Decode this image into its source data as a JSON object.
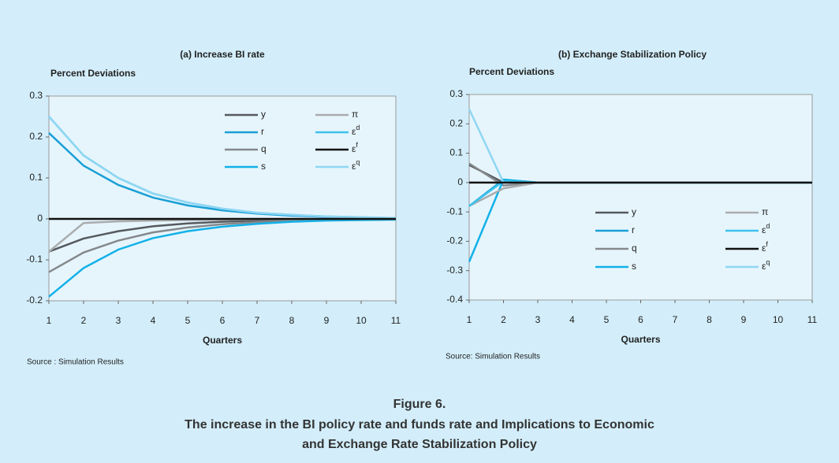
{
  "chart_data": [
    {
      "type": "line",
      "title": "(a) Increase BI rate",
      "y_label": "Percent Deviations",
      "x_label": "Quarters",
      "source": "Source : Simulation Results",
      "x": [
        1,
        2,
        3,
        4,
        5,
        6,
        7,
        8,
        9,
        10,
        11
      ],
      "xlim": [
        1,
        11
      ],
      "xticks": [
        1,
        2,
        3,
        4,
        5,
        6,
        7,
        8,
        9,
        10,
        11
      ],
      "ylim": [
        -0.2,
        0.3
      ],
      "yticks": [
        -0.2,
        -0.1,
        0,
        0.1,
        0.2,
        0.3
      ],
      "legend": "upper right",
      "series": [
        {
          "name": "y",
          "color": "#555a5e",
          "values": [
            -0.08,
            -0.048,
            -0.03,
            -0.018,
            -0.011,
            -0.007,
            -0.004,
            -0.003,
            -0.002,
            -0.001,
            -0.001
          ]
        },
        {
          "name": "r",
          "color": "#1a9fd6",
          "values": [
            0.21,
            0.13,
            0.083,
            0.052,
            0.033,
            0.021,
            0.013,
            0.008,
            0.005,
            0.003,
            0.002
          ]
        },
        {
          "name": "q",
          "color": "#85898c",
          "values": [
            -0.13,
            -0.082,
            -0.053,
            -0.033,
            -0.021,
            -0.013,
            -0.008,
            -0.005,
            -0.003,
            -0.002,
            -0.001
          ]
        },
        {
          "name": "s",
          "color": "#12b1e8",
          "values": [
            -0.19,
            -0.12,
            -0.075,
            -0.047,
            -0.03,
            -0.019,
            -0.012,
            -0.007,
            -0.004,
            -0.003,
            -0.002
          ]
        },
        {
          "name": "π",
          "color": "#a9acae",
          "values": [
            -0.08,
            -0.01,
            -0.006,
            -0.004,
            -0.003,
            -0.002,
            -0.001,
            -0.001,
            0,
            0,
            0
          ]
        },
        {
          "name": "εd",
          "color": "#3cc2ec",
          "values": [
            0.25,
            0.155,
            0.1,
            0.062,
            0.04,
            0.025,
            0.015,
            0.01,
            0.006,
            0.004,
            0.002
          ]
        },
        {
          "name": "εf",
          "color": "#111111",
          "values": [
            0,
            0,
            0,
            0,
            0,
            0,
            0,
            0,
            0,
            0,
            0
          ]
        },
        {
          "name": "εq",
          "color": "#8fd6f2",
          "values": [
            0.25,
            0.155,
            0.1,
            0.062,
            0.04,
            0.025,
            0.015,
            0.01,
            0.006,
            0.004,
            0.002
          ]
        }
      ]
    },
    {
      "type": "line",
      "title": "(b) Exchange Stabilization Policy",
      "y_label": "Percent Deviations",
      "x_label": "Quarters",
      "source": "Source: Simulation Results",
      "x": [
        1,
        2,
        3,
        4,
        5,
        6,
        7,
        8,
        9,
        10,
        11
      ],
      "xlim": [
        1,
        11
      ],
      "xticks": [
        1,
        2,
        3,
        4,
        5,
        6,
        7,
        8,
        9,
        10,
        11
      ],
      "ylim": [
        -0.4,
        0.3
      ],
      "yticks": [
        -0.4,
        -0.3,
        -0.2,
        -0.1,
        0,
        0.1,
        0.2,
        0.3
      ],
      "legend": "lower center",
      "series": [
        {
          "name": "y",
          "color": "#555a5e",
          "values": [
            0.06,
            0,
            0,
            0,
            0,
            0,
            0,
            0,
            0,
            0,
            0
          ]
        },
        {
          "name": "r",
          "color": "#1a9fd6",
          "values": [
            -0.08,
            0.01,
            0,
            0,
            0,
            0,
            0,
            0,
            0,
            0,
            0
          ]
        },
        {
          "name": "q",
          "color": "#85898c",
          "values": [
            0.065,
            -0.01,
            0,
            0,
            0,
            0,
            0,
            0,
            0,
            0,
            0
          ]
        },
        {
          "name": "s",
          "color": "#12b1e8",
          "values": [
            -0.27,
            0.01,
            0,
            0,
            0,
            0,
            0,
            0,
            0,
            0,
            0
          ]
        },
        {
          "name": "π",
          "color": "#a9acae",
          "values": [
            -0.08,
            -0.02,
            0,
            0,
            0,
            0,
            0,
            0,
            0,
            0,
            0
          ]
        },
        {
          "name": "εd",
          "color": "#3cc2ec",
          "values": [
            -0.08,
            0.005,
            0,
            0,
            0,
            0,
            0,
            0,
            0,
            0,
            0
          ]
        },
        {
          "name": "εf",
          "color": "#111111",
          "values": [
            0,
            0,
            0,
            0,
            0,
            0,
            0,
            0,
            0,
            0,
            0
          ]
        },
        {
          "name": "εq",
          "color": "#8fd6f2",
          "values": [
            0.25,
            0,
            0,
            0,
            0,
            0,
            0,
            0,
            0,
            0,
            0
          ]
        }
      ]
    }
  ],
  "figure": {
    "label": "Figure 6.",
    "caption_lines": [
      "The increase in the BI policy rate and funds rate and Implications to Economic",
      "and Exchange Rate Stabilization Policy"
    ]
  }
}
